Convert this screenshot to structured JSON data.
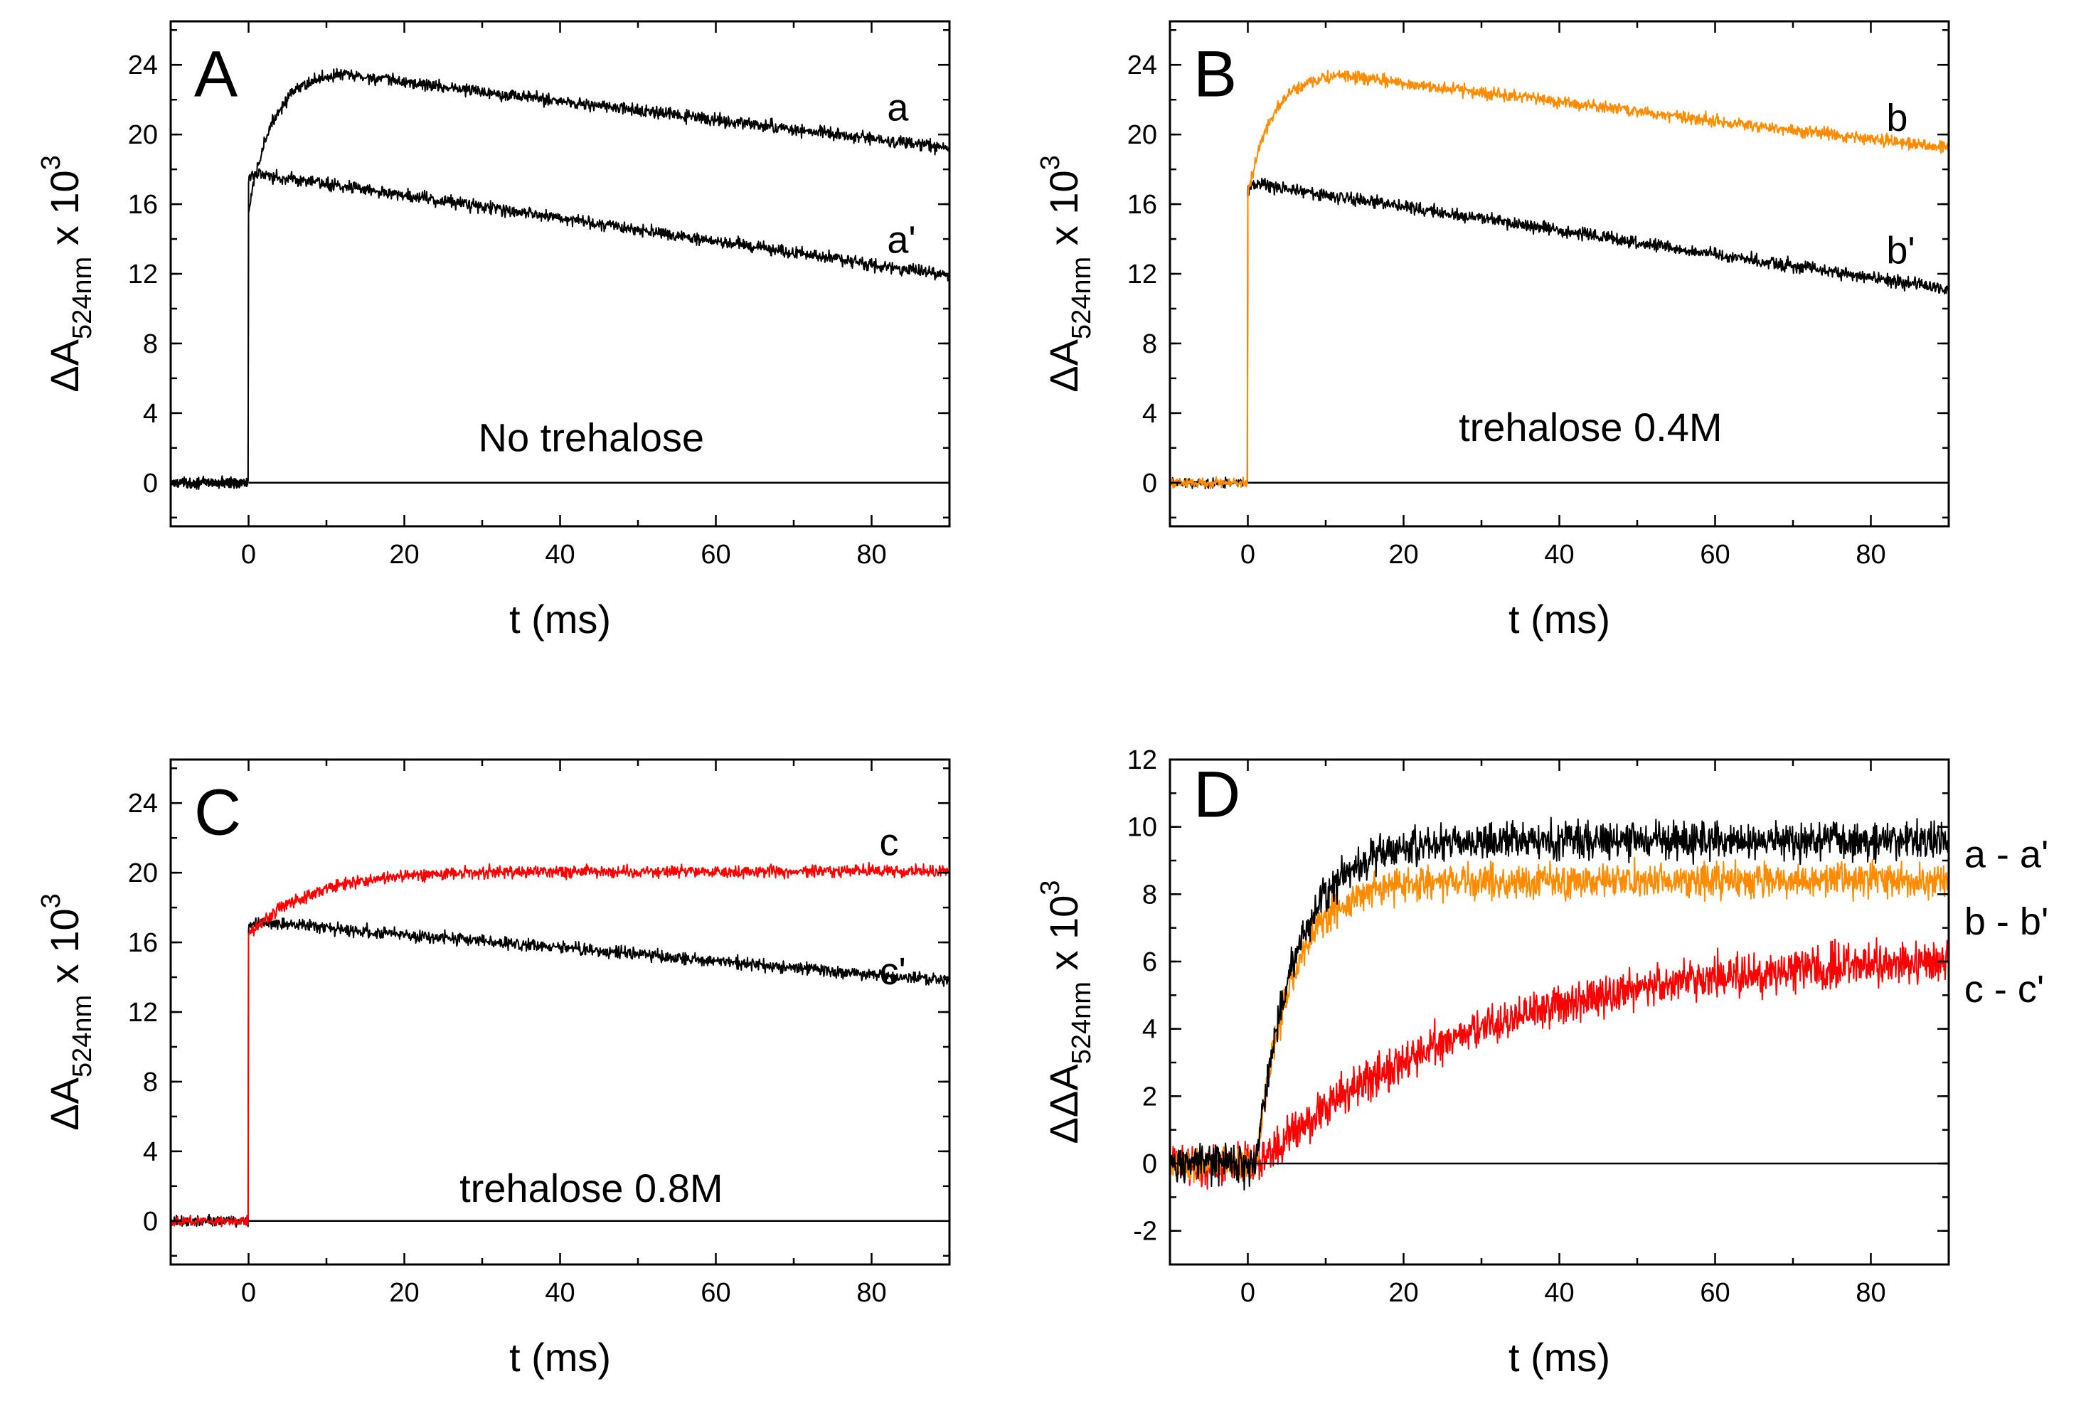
{
  "chart_data": [
    {
      "type": "line",
      "panel_letter": "A",
      "annotation": "No trehalose",
      "xlabel": "t (ms)",
      "ylabel_main": "ΔA",
      "ylabel_sub": "524nm",
      "ylabel_suffix": " x 10",
      "ylabel_sup": "3",
      "xlim": [
        -10,
        90
      ],
      "ylim": [
        -2.5,
        26.5
      ],
      "xticks": [
        0,
        20,
        40,
        60,
        80
      ],
      "yticks": [
        0,
        4,
        8,
        12,
        16,
        20,
        24
      ],
      "zero_line": true,
      "series": [
        {
          "name": "a",
          "color": "#000000",
          "baseline": 0,
          "jump": 15.5,
          "peak": 23.6,
          "peak_t": 12,
          "rise_tau": 3.0,
          "end_value": 19.2,
          "noise": 0.35
        },
        {
          "name": "a'",
          "color": "#000000",
          "baseline": 0,
          "jump": 17.5,
          "peak": 17.8,
          "peak_t": 1,
          "rise_tau": 0.5,
          "end_value": 11.9,
          "noise": 0.35
        }
      ]
    },
    {
      "type": "line",
      "panel_letter": "B",
      "annotation": "trehalose 0.4M",
      "xlabel": "t (ms)",
      "ylabel_main": "ΔA",
      "ylabel_sub": "524nm",
      "ylabel_suffix": " x 10",
      "ylabel_sup": "3",
      "xlim": [
        -10,
        90
      ],
      "ylim": [
        -2.5,
        26.5
      ],
      "xticks": [
        0,
        20,
        40,
        60,
        80
      ],
      "yticks": [
        0,
        4,
        8,
        12,
        16,
        20,
        24
      ],
      "zero_line": true,
      "series": [
        {
          "name": "b",
          "color": "#FF8C00",
          "baseline": 0,
          "jump": 16.5,
          "peak": 23.5,
          "peak_t": 12,
          "rise_tau": 3.0,
          "end_value": 19.2,
          "noise": 0.35
        },
        {
          "name": "b'",
          "color": "#000000",
          "baseline": 0,
          "jump": 16.8,
          "peak": 17.2,
          "peak_t": 1,
          "rise_tau": 0.5,
          "end_value": 11.1,
          "noise": 0.35
        }
      ]
    },
    {
      "type": "line",
      "panel_letter": "C",
      "annotation": "trehalose 0.8M",
      "xlabel": "t (ms)",
      "ylabel_main": "ΔA",
      "ylabel_sub": "524nm",
      "ylabel_suffix": " x 10",
      "ylabel_sup": "3",
      "xlim": [
        -10,
        90
      ],
      "ylim": [
        -2.5,
        26.5
      ],
      "xticks": [
        0,
        20,
        40,
        60,
        80
      ],
      "yticks": [
        0,
        4,
        8,
        12,
        16,
        20,
        24
      ],
      "zero_line": true,
      "series": [
        {
          "name": "c",
          "color": "#FF0000",
          "baseline": 0,
          "jump": 16.5,
          "peak": 20.1,
          "peak_t": 40,
          "rise_tau": 8.0,
          "end_value": 20.1,
          "noise": 0.35
        },
        {
          "name": "c'",
          "color": "#000000",
          "baseline": 0,
          "jump": 17.0,
          "peak": 17.2,
          "peak_t": 1,
          "rise_tau": 0.5,
          "end_value": 13.8,
          "noise": 0.35
        }
      ]
    },
    {
      "type": "line",
      "panel_letter": "D",
      "annotation": "",
      "xlabel": "t (ms)",
      "ylabel_main": "ΔΔA",
      "ylabel_sub": "524nm",
      "ylabel_suffix": " x 10",
      "ylabel_sup": "3",
      "xlim": [
        -10,
        90
      ],
      "ylim": [
        -3,
        12
      ],
      "xticks": [
        0,
        20,
        40,
        60,
        80
      ],
      "yticks": [
        -2,
        0,
        2,
        4,
        6,
        8,
        10,
        12
      ],
      "zero_line": true,
      "series": [
        {
          "name": "a - a'",
          "color": "#000000",
          "baseline": 0,
          "plateau": 9.6,
          "rise_tau": 5.0,
          "onset": 1,
          "noise": 0.55
        },
        {
          "name": "b - b'",
          "color": "#FF8C00",
          "baseline": 0,
          "plateau": 8.4,
          "rise_tau": 4.5,
          "onset": 1,
          "noise": 0.5
        },
        {
          "name": "c - c'",
          "color": "#FF0000",
          "baseline": 0,
          "plateau": 6.3,
          "rise_tau": 28.0,
          "onset": 1.5,
          "noise": 0.6
        }
      ]
    }
  ]
}
